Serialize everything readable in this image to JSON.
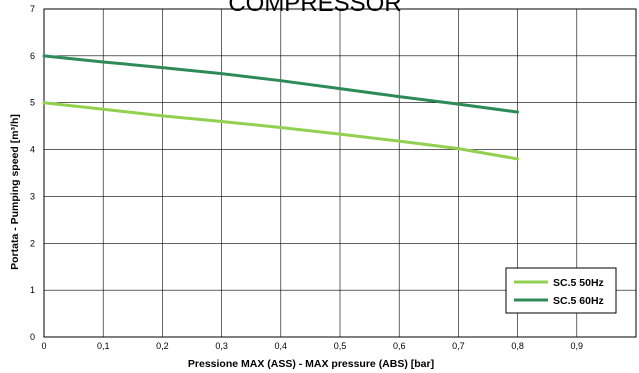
{
  "chart_data": {
    "type": "line",
    "title": "COMPRESSOR",
    "xlabel": "Pressione MAX  (ASS) - MAX pressure (ABS) [bar]",
    "ylabel": "Portata - Pumping speed [m³/h]",
    "xlim": [
      0,
      1
    ],
    "ylim": [
      0,
      7
    ],
    "x_ticks": [
      "0",
      "0,1",
      "0,2",
      "0,3",
      "0,4",
      "0,5",
      "0,6",
      "0,7",
      "0,8",
      "0,9"
    ],
    "y_ticks": [
      "0",
      "1",
      "2",
      "3",
      "4",
      "5",
      "6",
      "7"
    ],
    "grid": true,
    "legend_position": "bottom-right",
    "series": [
      {
        "name": "SC.5 50Hz",
        "color": "#92d050",
        "x": [
          0,
          0.1,
          0.2,
          0.3,
          0.4,
          0.5,
          0.6,
          0.7,
          0.8
        ],
        "y": [
          5.0,
          4.86,
          4.72,
          4.6,
          4.47,
          4.33,
          4.18,
          4.02,
          3.8
        ]
      },
      {
        "name": "SC.5 60Hz",
        "color": "#2e8b57",
        "x": [
          0,
          0.1,
          0.2,
          0.3,
          0.4,
          0.5,
          0.6,
          0.7,
          0.8
        ],
        "y": [
          6.0,
          5.87,
          5.75,
          5.62,
          5.47,
          5.3,
          5.13,
          4.97,
          4.8
        ]
      }
    ]
  }
}
